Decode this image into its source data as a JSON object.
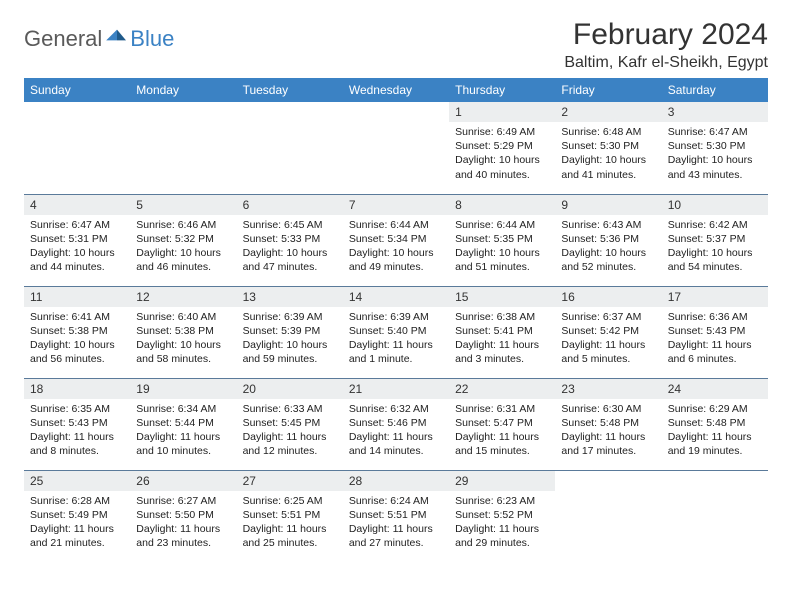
{
  "brand": {
    "part1": "General",
    "part2": "Blue"
  },
  "title": "February 2024",
  "location": "Baltim, Kafr el-Sheikh, Egypt",
  "colors": {
    "header_bg": "#3b82c4",
    "header_text": "#ffffff",
    "daynum_bg": "#eceeef",
    "border": "#5a7a9a",
    "logo_gray": "#5a5a5a",
    "logo_blue": "#3b82c4"
  },
  "day_headers": [
    "Sunday",
    "Monday",
    "Tuesday",
    "Wednesday",
    "Thursday",
    "Friday",
    "Saturday"
  ],
  "weeks": [
    [
      null,
      null,
      null,
      null,
      {
        "n": "1",
        "sunrise": "6:49 AM",
        "sunset": "5:29 PM",
        "daylight": "10 hours and 40 minutes."
      },
      {
        "n": "2",
        "sunrise": "6:48 AM",
        "sunset": "5:30 PM",
        "daylight": "10 hours and 41 minutes."
      },
      {
        "n": "3",
        "sunrise": "6:47 AM",
        "sunset": "5:30 PM",
        "daylight": "10 hours and 43 minutes."
      }
    ],
    [
      {
        "n": "4",
        "sunrise": "6:47 AM",
        "sunset": "5:31 PM",
        "daylight": "10 hours and 44 minutes."
      },
      {
        "n": "5",
        "sunrise": "6:46 AM",
        "sunset": "5:32 PM",
        "daylight": "10 hours and 46 minutes."
      },
      {
        "n": "6",
        "sunrise": "6:45 AM",
        "sunset": "5:33 PM",
        "daylight": "10 hours and 47 minutes."
      },
      {
        "n": "7",
        "sunrise": "6:44 AM",
        "sunset": "5:34 PM",
        "daylight": "10 hours and 49 minutes."
      },
      {
        "n": "8",
        "sunrise": "6:44 AM",
        "sunset": "5:35 PM",
        "daylight": "10 hours and 51 minutes."
      },
      {
        "n": "9",
        "sunrise": "6:43 AM",
        "sunset": "5:36 PM",
        "daylight": "10 hours and 52 minutes."
      },
      {
        "n": "10",
        "sunrise": "6:42 AM",
        "sunset": "5:37 PM",
        "daylight": "10 hours and 54 minutes."
      }
    ],
    [
      {
        "n": "11",
        "sunrise": "6:41 AM",
        "sunset": "5:38 PM",
        "daylight": "10 hours and 56 minutes."
      },
      {
        "n": "12",
        "sunrise": "6:40 AM",
        "sunset": "5:38 PM",
        "daylight": "10 hours and 58 minutes."
      },
      {
        "n": "13",
        "sunrise": "6:39 AM",
        "sunset": "5:39 PM",
        "daylight": "10 hours and 59 minutes."
      },
      {
        "n": "14",
        "sunrise": "6:39 AM",
        "sunset": "5:40 PM",
        "daylight": "11 hours and 1 minute."
      },
      {
        "n": "15",
        "sunrise": "6:38 AM",
        "sunset": "5:41 PM",
        "daylight": "11 hours and 3 minutes."
      },
      {
        "n": "16",
        "sunrise": "6:37 AM",
        "sunset": "5:42 PM",
        "daylight": "11 hours and 5 minutes."
      },
      {
        "n": "17",
        "sunrise": "6:36 AM",
        "sunset": "5:43 PM",
        "daylight": "11 hours and 6 minutes."
      }
    ],
    [
      {
        "n": "18",
        "sunrise": "6:35 AM",
        "sunset": "5:43 PM",
        "daylight": "11 hours and 8 minutes."
      },
      {
        "n": "19",
        "sunrise": "6:34 AM",
        "sunset": "5:44 PM",
        "daylight": "11 hours and 10 minutes."
      },
      {
        "n": "20",
        "sunrise": "6:33 AM",
        "sunset": "5:45 PM",
        "daylight": "11 hours and 12 minutes."
      },
      {
        "n": "21",
        "sunrise": "6:32 AM",
        "sunset": "5:46 PM",
        "daylight": "11 hours and 14 minutes."
      },
      {
        "n": "22",
        "sunrise": "6:31 AM",
        "sunset": "5:47 PM",
        "daylight": "11 hours and 15 minutes."
      },
      {
        "n": "23",
        "sunrise": "6:30 AM",
        "sunset": "5:48 PM",
        "daylight": "11 hours and 17 minutes."
      },
      {
        "n": "24",
        "sunrise": "6:29 AM",
        "sunset": "5:48 PM",
        "daylight": "11 hours and 19 minutes."
      }
    ],
    [
      {
        "n": "25",
        "sunrise": "6:28 AM",
        "sunset": "5:49 PM",
        "daylight": "11 hours and 21 minutes."
      },
      {
        "n": "26",
        "sunrise": "6:27 AM",
        "sunset": "5:50 PM",
        "daylight": "11 hours and 23 minutes."
      },
      {
        "n": "27",
        "sunrise": "6:25 AM",
        "sunset": "5:51 PM",
        "daylight": "11 hours and 25 minutes."
      },
      {
        "n": "28",
        "sunrise": "6:24 AM",
        "sunset": "5:51 PM",
        "daylight": "11 hours and 27 minutes."
      },
      {
        "n": "29",
        "sunrise": "6:23 AM",
        "sunset": "5:52 PM",
        "daylight": "11 hours and 29 minutes."
      },
      null,
      null
    ]
  ],
  "labels": {
    "sunrise_prefix": "Sunrise: ",
    "sunset_prefix": "Sunset: ",
    "daylight_prefix": "Daylight: "
  }
}
